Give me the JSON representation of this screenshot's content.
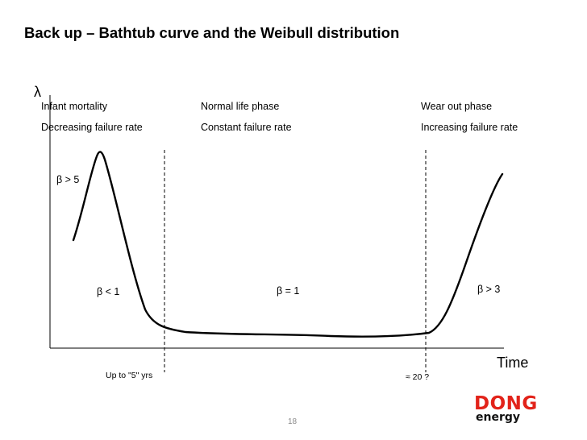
{
  "title": "Back up – Bathtub curve and the Weibull distribution",
  "axes": {
    "y_symbol": "λ",
    "x_label": "Time"
  },
  "phases": [
    {
      "name": "Infant mortality",
      "description": "Decreasing failure rate"
    },
    {
      "name": "Normal life phase",
      "description": "Constant failure rate"
    },
    {
      "name": "Wear out phase",
      "description": "Increasing failure rate"
    }
  ],
  "beta_labels": {
    "early_peak": "β > 5",
    "infant": "β < 1",
    "normal": "β = 1",
    "wear_out": "β > 3"
  },
  "time_markers": {
    "end_infant": "Up to \"5\" yrs",
    "start_wear_out": "≈ 20 ?"
  },
  "page_number": "18",
  "logo": {
    "line1": "DONG",
    "line2": "energy",
    "color": "#e2231a"
  },
  "colors": {
    "curve": "#000000",
    "logo_red": "#e2231a"
  }
}
